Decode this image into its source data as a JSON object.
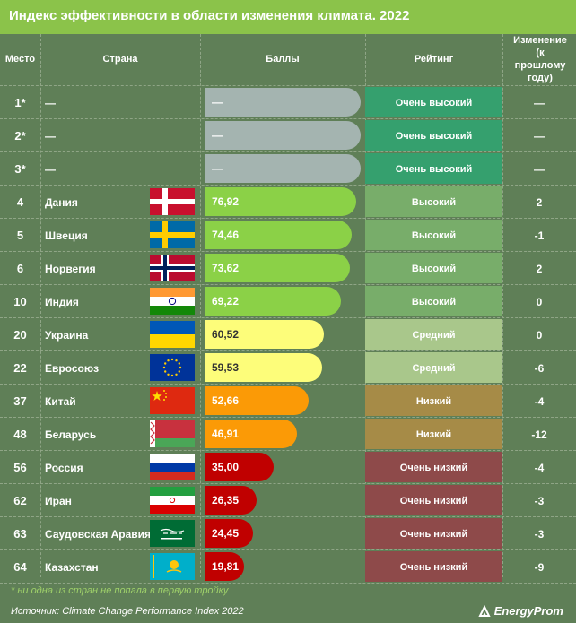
{
  "title": "Индекс эффективности в области изменения климата. 2022",
  "columns": {
    "rank": "Место",
    "country": "Страна",
    "score": "Баллы",
    "rating": "Рейтинг",
    "change": "Изменение (к прошлому году)"
  },
  "colors": {
    "title_bg": "#8bc34a",
    "body_bg": "#5f7f57",
    "bar_empty": "#a4b4b0",
    "bar_green": "#8bd147",
    "bar_yellow": "#fdfd7a",
    "bar_orange": "#fb9a06",
    "bar_red": "#c00000",
    "rating_very_high": "#35a06e",
    "rating_high": "#78ad6a",
    "rating_medium": "#a9c78b",
    "rating_low": "#a68b47",
    "rating_very_low": "#8e4a4a"
  },
  "chart_data": {
    "type": "table",
    "title": "Индекс эффективности в области изменения климата. 2022",
    "xlim": [
      0,
      100
    ],
    "rows": [
      {
        "rank": "1*",
        "country": "—",
        "flag": "",
        "score": null,
        "score_label": "—",
        "rating": "Очень высокий",
        "change": "—",
        "bar_color": "bar_empty",
        "rating_color": "rating_very_high",
        "text_color": "#ffffff"
      },
      {
        "rank": "2*",
        "country": "—",
        "flag": "",
        "score": null,
        "score_label": "—",
        "rating": "Очень высокий",
        "change": "—",
        "bar_color": "bar_empty",
        "rating_color": "rating_very_high",
        "text_color": "#ffffff"
      },
      {
        "rank": "3*",
        "country": "—",
        "flag": "",
        "score": null,
        "score_label": "—",
        "rating": "Очень высокий",
        "change": "—",
        "bar_color": "bar_empty",
        "rating_color": "rating_very_high",
        "text_color": "#ffffff"
      },
      {
        "rank": "4",
        "country": "Дания",
        "flag": "denmark",
        "score": 76.92,
        "score_label": "76,92",
        "rating": "Высокий",
        "change": "2",
        "bar_color": "bar_green",
        "rating_color": "rating_high",
        "text_color": "#ffffff"
      },
      {
        "rank": "5",
        "country": "Швеция",
        "flag": "sweden",
        "score": 74.46,
        "score_label": "74,46",
        "rating": "Высокий",
        "change": "-1",
        "bar_color": "bar_green",
        "rating_color": "rating_high",
        "text_color": "#ffffff"
      },
      {
        "rank": "6",
        "country": "Норвегия",
        "flag": "norway",
        "score": 73.62,
        "score_label": "73,62",
        "rating": "Высокий",
        "change": "2",
        "bar_color": "bar_green",
        "rating_color": "rating_high",
        "text_color": "#ffffff"
      },
      {
        "rank": "10",
        "country": "Индия",
        "flag": "india",
        "score": 69.22,
        "score_label": "69,22",
        "rating": "Высокий",
        "change": "0",
        "bar_color": "bar_green",
        "rating_color": "rating_high",
        "text_color": "#ffffff"
      },
      {
        "rank": "20",
        "country": "Украина",
        "flag": "ukraine",
        "score": 60.52,
        "score_label": "60,52",
        "rating": "Средний",
        "change": "0",
        "bar_color": "bar_yellow",
        "rating_color": "rating_medium",
        "text_color": "#333333"
      },
      {
        "rank": "22",
        "country": "Евросоюз",
        "flag": "eu",
        "score": 59.53,
        "score_label": "59,53",
        "rating": "Средний",
        "change": "-6",
        "bar_color": "bar_yellow",
        "rating_color": "rating_medium",
        "text_color": "#333333"
      },
      {
        "rank": "37",
        "country": "Китай",
        "flag": "china",
        "score": 52.66,
        "score_label": "52,66",
        "rating": "Низкий",
        "change": "-4",
        "bar_color": "bar_orange",
        "rating_color": "rating_low",
        "text_color": "#ffffff"
      },
      {
        "rank": "48",
        "country": "Беларусь",
        "flag": "belarus",
        "score": 46.91,
        "score_label": "46,91",
        "rating": "Низкий",
        "change": "-12",
        "bar_color": "bar_orange",
        "rating_color": "rating_low",
        "text_color": "#ffffff"
      },
      {
        "rank": "56",
        "country": "Россия",
        "flag": "russia",
        "score": 35.0,
        "score_label": "35,00",
        "rating": "Очень низкий",
        "change": "-4",
        "bar_color": "bar_red",
        "rating_color": "rating_very_low",
        "text_color": "#ffffff"
      },
      {
        "rank": "62",
        "country": "Иран",
        "flag": "iran",
        "score": 26.35,
        "score_label": "26,35",
        "rating": "Очень низкий",
        "change": "-3",
        "bar_color": "bar_red",
        "rating_color": "rating_very_low",
        "text_color": "#ffffff"
      },
      {
        "rank": "63",
        "country": "Саудовская Аравия",
        "flag": "saudi",
        "score": 24.45,
        "score_label": "24,45",
        "rating": "Очень низкий",
        "change": "-3",
        "bar_color": "bar_red",
        "rating_color": "rating_very_low",
        "text_color": "#ffffff"
      },
      {
        "rank": "64",
        "country": "Казахстан",
        "flag": "kazakhstan",
        "score": 19.81,
        "score_label": "19,81",
        "rating": "Очень низкий",
        "change": "-9",
        "bar_color": "bar_red",
        "rating_color": "rating_very_low",
        "text_color": "#ffffff"
      }
    ]
  },
  "footnote": "* ни одна из стран не попала в первую тройку",
  "source": "Источник: Climate Change Performance Index 2022",
  "logo_text": "EnergyProm"
}
